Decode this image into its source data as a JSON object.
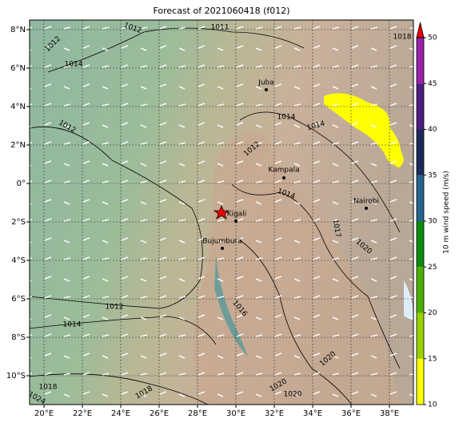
{
  "title": "Forecast of 2021060418 (f012)",
  "map": {
    "lon_range": [
      19.25,
      39.25
    ],
    "lat_range": [
      -11.5,
      8.5
    ],
    "lon_ticks": [
      {
        "value": 20,
        "label": "20°E"
      },
      {
        "value": 22,
        "label": "22°E"
      },
      {
        "value": 24,
        "label": "24°E"
      },
      {
        "value": 26,
        "label": "26°E"
      },
      {
        "value": 28,
        "label": "28°E"
      },
      {
        "value": 30,
        "label": "30°E"
      },
      {
        "value": 32,
        "label": "32°E"
      },
      {
        "value": 34,
        "label": "34°E"
      },
      {
        "value": 36,
        "label": "36°E"
      },
      {
        "value": 38,
        "label": "38°E"
      }
    ],
    "lat_ticks": [
      {
        "value": 8,
        "label": "8°N"
      },
      {
        "value": 6,
        "label": "6°N"
      },
      {
        "value": 4,
        "label": "4°N"
      },
      {
        "value": 2,
        "label": "2°N"
      },
      {
        "value": 0,
        "label": "0°"
      },
      {
        "value": -2,
        "label": "2°S"
      },
      {
        "value": -4,
        "label": "4°S"
      },
      {
        "value": -6,
        "label": "6°S"
      },
      {
        "value": -8,
        "label": "8°S"
      },
      {
        "value": -10,
        "label": "10°S"
      }
    ],
    "grid": true,
    "cities": [
      "Juba",
      "Kampala",
      "Kigali",
      "Bujumbura",
      "Nairobi"
    ],
    "isobar_labels": [
      "1012",
      "1012",
      "1011",
      "1018",
      "1014",
      "1012",
      "1014",
      "1014",
      "1012",
      "1014",
      "1017",
      "1020",
      "1012",
      "1014",
      "1016",
      "1018",
      "1018",
      "1020",
      "1020",
      "1020",
      "1024"
    ]
  },
  "colorbar": {
    "label": "10 m wind speed (m/s)",
    "range": [
      10,
      50
    ],
    "ticks": [
      10,
      15,
      20,
      25,
      30,
      35,
      40,
      45,
      50
    ],
    "colors": [
      "#ffff00",
      "#9ad000",
      "#4cb000",
      "#0c8a0c",
      "#26648e",
      "#1c2a5a",
      "#4c1e80",
      "#9a20a8"
    ],
    "extend_color": "#ee0000"
  }
}
